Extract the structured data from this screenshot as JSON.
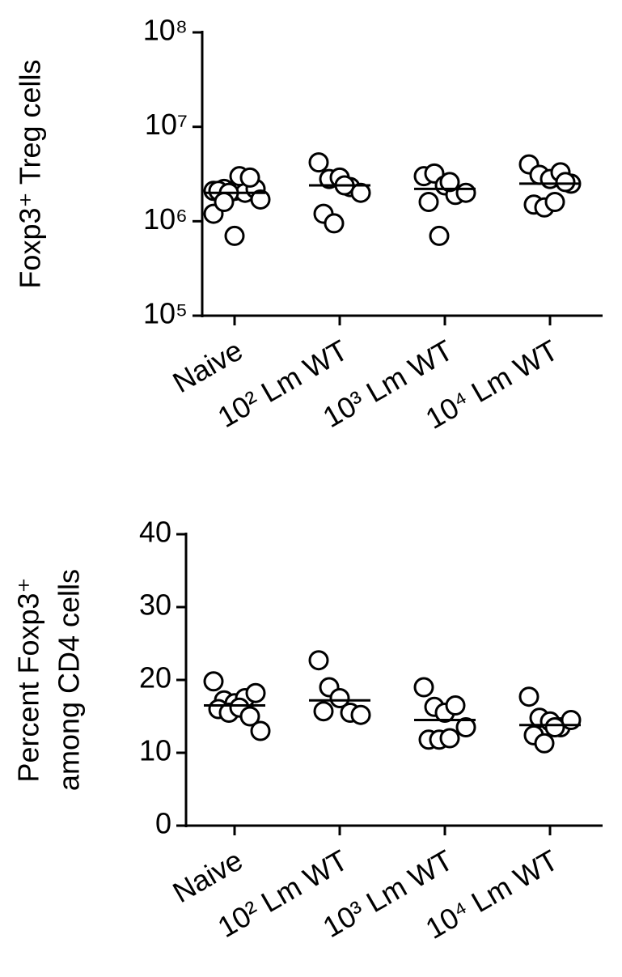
{
  "chart_data": [
    {
      "type": "dotplot",
      "y_label": [
        "Foxp3⁺ Treg cells"
      ],
      "categories": [
        "Naive",
        "10² Lm WT",
        "10³ Lm WT",
        "10⁴ Lm WT"
      ],
      "values": [
        [
          2100000,
          2200000,
          2100000,
          2000000,
          2200000,
          2100000,
          2000000,
          3000000,
          2900000,
          1700000,
          1200000,
          1600000,
          700000
        ],
        [
          4200000,
          2800000,
          2900000,
          2300000,
          2000000,
          1200000,
          950000,
          2400000
        ],
        [
          3000000,
          3200000,
          2400000,
          1900000,
          2000000,
          1600000,
          700000,
          2600000
        ],
        [
          4000000,
          3100000,
          2800000,
          3300000,
          2500000,
          1500000,
          1400000,
          1600000,
          2600000
        ]
      ],
      "means": [
        2000000,
        2400000,
        2200000,
        2500000
      ],
      "log_scale": true,
      "ylim": [
        100000,
        100000000
      ],
      "yticks": [
        {
          "value": 100000,
          "label": "10⁵"
        },
        {
          "value": 1000000,
          "label": "10⁶"
        },
        {
          "value": 10000000,
          "label": "10⁷"
        },
        {
          "value": 100000000,
          "label": "10⁸"
        }
      ],
      "color": "#000000"
    },
    {
      "type": "dotplot",
      "y_label": [
        "Percent Foxp3⁺",
        "among CD4 cells"
      ],
      "categories": [
        "Naive",
        "10² Lm WT",
        "10³ Lm WT",
        "10⁴ Lm WT"
      ],
      "values": [
        [
          19.8,
          17.2,
          16.8,
          17.5,
          18.2,
          16,
          15.5,
          16.2,
          15,
          13
        ],
        [
          22.7,
          19,
          17.5,
          15.5,
          15.2,
          15.7
        ],
        [
          19,
          16.3,
          15.5,
          16.5,
          13.5,
          11.8,
          11.8,
          12
        ],
        [
          17.7,
          14.8,
          14.3,
          13.5,
          14.5,
          12.4,
          11.3,
          13.5
        ]
      ],
      "means": [
        16.5,
        17.2,
        14.5,
        13.8
      ],
      "log_scale": false,
      "ylim": [
        0,
        40
      ],
      "yticks": [
        0,
        10,
        20,
        30,
        40
      ],
      "color": "#000000"
    }
  ]
}
